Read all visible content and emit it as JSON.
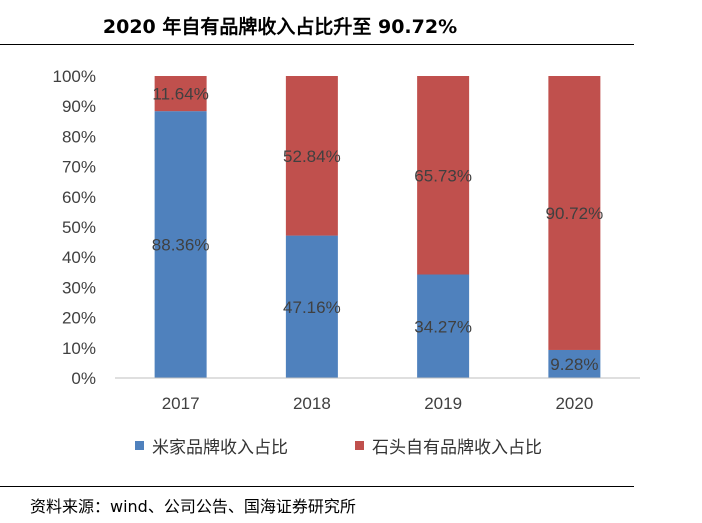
{
  "title": "2020 年自有品牌收入占比升至 90.72%",
  "source": "资料来源：wind、公司公告、国海证券研究所",
  "chart_data": {
    "type": "bar",
    "stacked": true,
    "percent": true,
    "categories": [
      "2017",
      "2018",
      "2019",
      "2020"
    ],
    "series": [
      {
        "name": "米家品牌收入占比",
        "color": "#4f81bd",
        "values": [
          88.36,
          47.16,
          34.27,
          9.28
        ],
        "labels": [
          "88.36%",
          "47.16%",
          "34.27%",
          "9.28%"
        ]
      },
      {
        "name": "石头自有品牌收入占比",
        "color": "#c0504d",
        "values": [
          11.64,
          52.84,
          65.73,
          90.72
        ],
        "labels": [
          "11.64%",
          "52.84%",
          "65.73%",
          "90.72%"
        ]
      }
    ],
    "ylim": [
      0,
      100
    ],
    "yticks": [
      "0%",
      "10%",
      "20%",
      "30%",
      "40%",
      "50%",
      "60%",
      "70%",
      "80%",
      "90%",
      "100%"
    ],
    "grid": false,
    "legend": "bottom"
  }
}
